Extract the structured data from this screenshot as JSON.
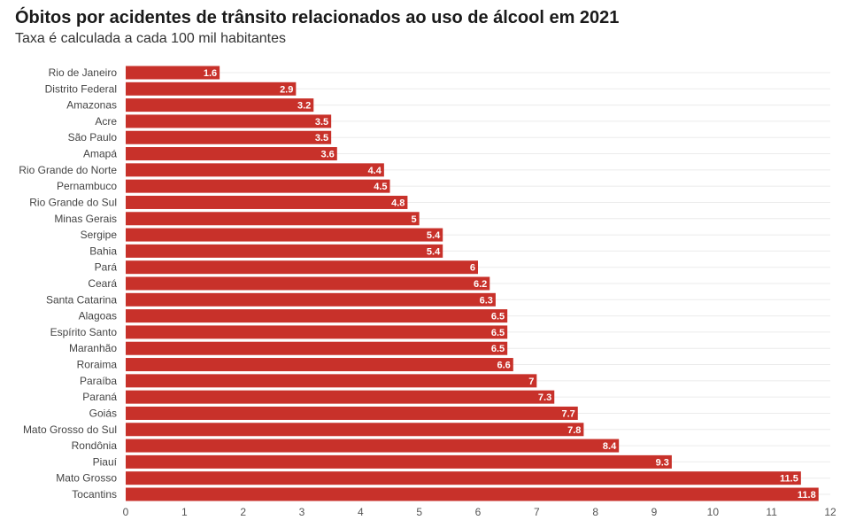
{
  "chart_data": {
    "type": "bar",
    "orientation": "horizontal",
    "title": "Óbitos por acidentes de trânsito relacionados ao uso de álcool em 2021",
    "subtitle": "Taxa é calculada a cada 100 mil habitantes",
    "categories": [
      "Rio de Janeiro",
      "Distrito Federal",
      "Amazonas",
      "Acre",
      "São Paulo",
      "Amapá",
      "Rio Grande do Norte",
      "Pernambuco",
      "Rio Grande do Sul",
      "Minas Gerais",
      "Sergipe",
      "Bahia",
      "Pará",
      "Ceará",
      "Santa Catarina",
      "Alagoas",
      "Espírito Santo",
      "Maranhão",
      "Roraima",
      "Paraíba",
      "Paraná",
      "Goiás",
      "Mato Grosso do Sul",
      "Rondônia",
      "Piauí",
      "Mato Grosso",
      "Tocantins"
    ],
    "values": [
      1.6,
      2.9,
      3.2,
      3.5,
      3.5,
      3.6,
      4.4,
      4.5,
      4.8,
      5,
      5.4,
      5.4,
      6,
      6.2,
      6.3,
      6.5,
      6.5,
      6.5,
      6.6,
      7,
      7.3,
      7.7,
      7.8,
      8.4,
      9.3,
      11.5,
      11.8
    ],
    "xlim": [
      0,
      12
    ],
    "xticks": [
      0,
      1,
      2,
      3,
      4,
      5,
      6,
      7,
      8,
      9,
      10,
      11,
      12
    ],
    "grid": true,
    "bar_color": "#c8312a",
    "data_label_color": "#ffffff"
  }
}
